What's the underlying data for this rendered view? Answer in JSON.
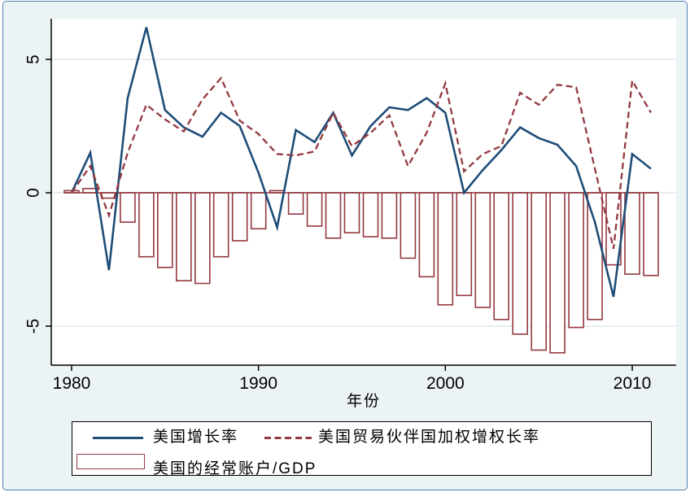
{
  "window": {
    "background": "#ecf3f5",
    "plot_background": "#ffffff",
    "border_color": "#4f7fae",
    "grid_color": "#dfe9ed",
    "axis_color": "#000000"
  },
  "chart_data": {
    "type": "bar+line",
    "title": "",
    "xlabel": "年份",
    "ylabel": "",
    "x": [
      1980,
      1981,
      1982,
      1983,
      1984,
      1985,
      1986,
      1987,
      1988,
      1989,
      1990,
      1991,
      1992,
      1993,
      1994,
      1995,
      1996,
      1997,
      1998,
      1999,
      2000,
      2001,
      2002,
      2003,
      2004,
      2005,
      2006,
      2007,
      2008,
      2009,
      2010,
      2011
    ],
    "x_ticks": [
      1980,
      1990,
      2000,
      2010
    ],
    "x_tick_labels": [
      "1980",
      "1990",
      "2000",
      "2010"
    ],
    "y_ticks": [
      5,
      0,
      -5
    ],
    "y_tick_labels": [
      "5",
      "0",
      "-5"
    ],
    "ylim": [
      -6.5,
      6.5
    ],
    "xlim": [
      1978.9,
      2012.4
    ],
    "grid": true,
    "legend_position": "bottom",
    "series": [
      {
        "name": "美国增长率",
        "type": "line",
        "style": "solid",
        "color": "#1e4d78",
        "values": [
          0.0,
          1.5,
          -2.9,
          3.55,
          6.2,
          3.1,
          2.45,
          2.1,
          3.0,
          2.5,
          0.75,
          -1.3,
          2.35,
          1.9,
          3.0,
          1.4,
          2.5,
          3.2,
          3.1,
          3.55,
          3.0,
          0.0,
          0.85,
          1.6,
          2.45,
          2.05,
          1.8,
          1.0,
          -1.1,
          -3.9,
          1.45,
          0.9
        ]
      },
      {
        "name": "美国贸易伙伴国加权增权长率",
        "type": "line",
        "style": "dashed",
        "color": "#933940",
        "values": [
          0.0,
          1.0,
          -0.85,
          1.5,
          3.3,
          2.75,
          2.3,
          3.5,
          4.3,
          2.7,
          2.2,
          1.45,
          1.4,
          1.55,
          3.0,
          1.75,
          2.25,
          2.9,
          1.0,
          2.25,
          4.1,
          0.8,
          1.45,
          1.75,
          3.75,
          3.3,
          4.05,
          3.95,
          0.9,
          -2.1,
          4.2,
          3.0
        ]
      },
      {
        "name": "美国的经常账户/GDP",
        "type": "bar",
        "color": "#933940",
        "fill": "#ffffff",
        "values": [
          0.08,
          0.16,
          -0.2,
          -1.1,
          -2.4,
          -2.8,
          -3.3,
          -3.4,
          -2.4,
          -1.8,
          -1.35,
          0.08,
          -0.8,
          -1.25,
          -1.7,
          -1.5,
          -1.65,
          -1.7,
          -2.45,
          -3.15,
          -4.2,
          -3.85,
          -4.3,
          -4.75,
          -5.3,
          -5.9,
          -6.0,
          -5.05,
          -4.75,
          -2.7,
          -3.05,
          -3.1
        ]
      }
    ]
  }
}
